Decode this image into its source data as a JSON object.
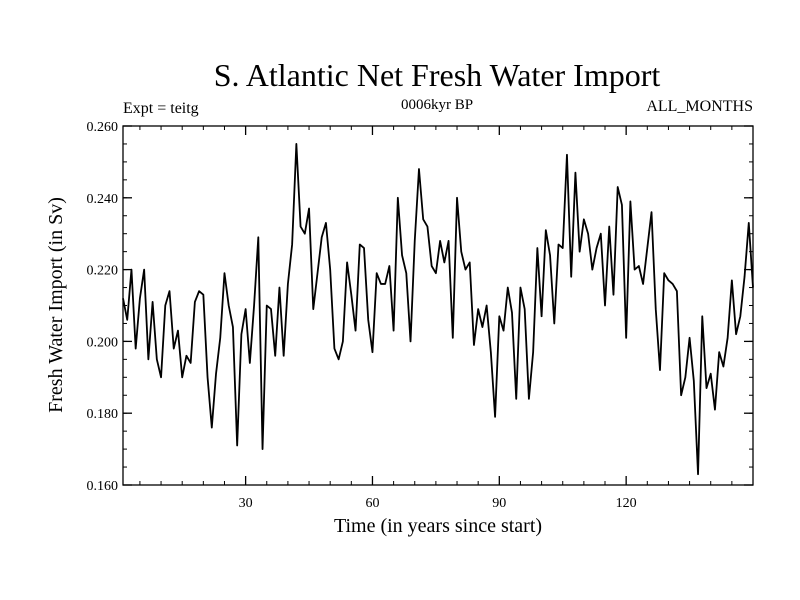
{
  "chart_data": {
    "type": "line",
    "title": "S. Atlantic Net Fresh Water Import",
    "subtitle": "0006kyr BP",
    "left_label": "Expt = teitg",
    "right_label": "ALL_MONTHS",
    "xlabel": "Time (in years since start)",
    "ylabel": "Fresh Water Import (in Sv)",
    "xlim": [
      1,
      150
    ],
    "ylim": [
      0.16,
      0.26
    ],
    "x_ticks": [
      30,
      60,
      90,
      120
    ],
    "x_tick_labels": [
      "30",
      "60",
      "90",
      "120"
    ],
    "y_ticks": [
      0.16,
      0.18,
      0.2,
      0.22,
      0.24,
      0.26
    ],
    "y_tick_labels": [
      "0.160",
      "0.180",
      "0.200",
      "0.220",
      "0.240",
      "0.260"
    ],
    "line_color": "#000000",
    "series": [
      {
        "name": "Net Fresh Water Import",
        "x": [
          1,
          2,
          3,
          4,
          5,
          6,
          7,
          8,
          9,
          10,
          11,
          12,
          13,
          14,
          15,
          16,
          17,
          18,
          19,
          20,
          21,
          22,
          23,
          24,
          25,
          26,
          27,
          28,
          29,
          30,
          31,
          32,
          33,
          34,
          35,
          36,
          37,
          38,
          39,
          40,
          41,
          42,
          43,
          44,
          45,
          46,
          47,
          48,
          49,
          50,
          51,
          52,
          53,
          54,
          55,
          56,
          57,
          58,
          59,
          60,
          61,
          62,
          63,
          64,
          65,
          66,
          67,
          68,
          69,
          70,
          71,
          72,
          73,
          74,
          75,
          76,
          77,
          78,
          79,
          80,
          81,
          82,
          83,
          84,
          85,
          86,
          87,
          88,
          89,
          90,
          91,
          92,
          93,
          94,
          95,
          96,
          97,
          98,
          99,
          100,
          101,
          102,
          103,
          104,
          105,
          106,
          107,
          108,
          109,
          110,
          111,
          112,
          113,
          114,
          115,
          116,
          117,
          118,
          119,
          120,
          121,
          122,
          123,
          124,
          125,
          126,
          127,
          128,
          129,
          130,
          131,
          132,
          133,
          134,
          135,
          136,
          137,
          138,
          139,
          140,
          141,
          142,
          143,
          144,
          145,
          146,
          147,
          148,
          149,
          150
        ],
        "values": [
          0.212,
          0.206,
          0.22,
          0.198,
          0.212,
          0.22,
          0.195,
          0.211,
          0.195,
          0.19,
          0.21,
          0.214,
          0.198,
          0.203,
          0.19,
          0.196,
          0.194,
          0.211,
          0.214,
          0.213,
          0.19,
          0.176,
          0.191,
          0.201,
          0.219,
          0.21,
          0.204,
          0.171,
          0.202,
          0.209,
          0.194,
          0.21,
          0.229,
          0.17,
          0.21,
          0.209,
          0.196,
          0.215,
          0.196,
          0.216,
          0.227,
          0.255,
          0.232,
          0.23,
          0.237,
          0.209,
          0.219,
          0.229,
          0.233,
          0.22,
          0.198,
          0.195,
          0.2,
          0.222,
          0.213,
          0.203,
          0.227,
          0.226,
          0.206,
          0.197,
          0.219,
          0.216,
          0.216,
          0.221,
          0.203,
          0.24,
          0.224,
          0.219,
          0.2,
          0.228,
          0.248,
          0.234,
          0.232,
          0.221,
          0.219,
          0.228,
          0.222,
          0.228,
          0.201,
          0.24,
          0.225,
          0.22,
          0.222,
          0.199,
          0.209,
          0.204,
          0.21,
          0.197,
          0.179,
          0.207,
          0.203,
          0.215,
          0.208,
          0.184,
          0.215,
          0.209,
          0.184,
          0.197,
          0.226,
          0.207,
          0.231,
          0.224,
          0.205,
          0.227,
          0.226,
          0.252,
          0.218,
          0.247,
          0.225,
          0.234,
          0.23,
          0.22,
          0.226,
          0.23,
          0.21,
          0.232,
          0.213,
          0.243,
          0.238,
          0.201,
          0.239,
          0.22,
          0.221,
          0.216,
          0.226,
          0.236,
          0.209,
          0.192,
          0.219,
          0.217,
          0.216,
          0.214,
          0.185,
          0.19,
          0.201,
          0.189,
          0.163,
          0.207,
          0.187,
          0.191,
          0.181,
          0.197,
          0.193,
          0.201,
          0.217,
          0.202,
          0.207,
          0.218,
          0.233,
          0.215
        ]
      }
    ]
  }
}
